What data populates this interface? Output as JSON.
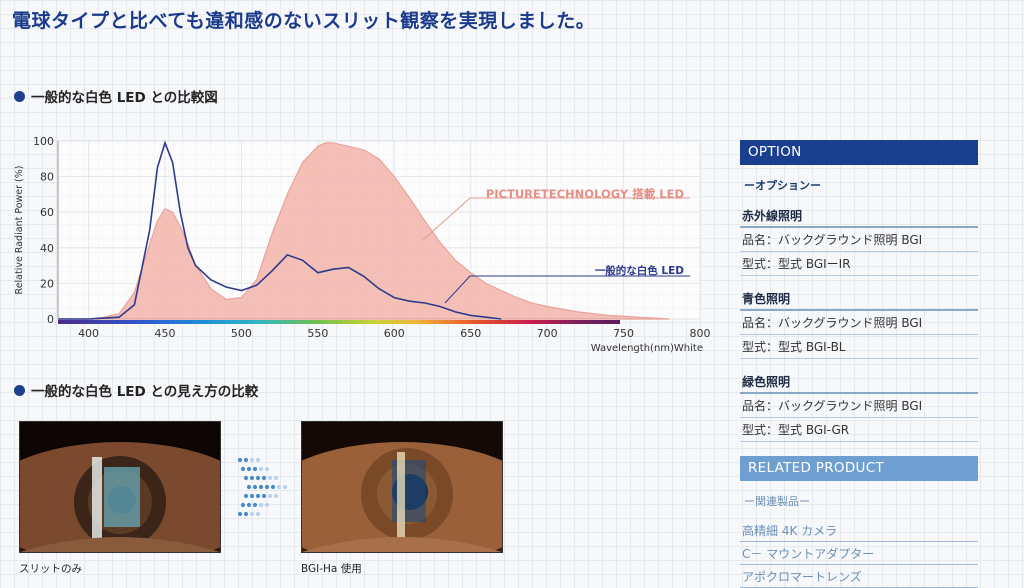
{
  "headline": "電球タイプと比べても違和感のないスリット観察を実現しました。",
  "section1_title": "一般的な白色 LED との比較図",
  "section2_title": "一般的な白色 LED との見え方の比較",
  "chart_data": {
    "type": "area",
    "ylabel": "Relative Radiant Power (%)",
    "xlabel": "Wavelength(nm)White",
    "xlim": [
      380,
      800
    ],
    "ylim": [
      0,
      100
    ],
    "xticks": [
      400,
      450,
      500,
      550,
      600,
      650,
      700,
      750,
      800
    ],
    "yticks": [
      0,
      20,
      40,
      60,
      80,
      100
    ],
    "series": [
      {
        "name": "PICTURETECHNOLOGY 搭載 LED",
        "color": "#f4b9b0",
        "edge": "#e79a90",
        "x": [
          380,
          400,
          410,
          420,
          430,
          440,
          445,
          450,
          455,
          460,
          465,
          470,
          480,
          490,
          500,
          510,
          520,
          530,
          540,
          550,
          555,
          560,
          570,
          580,
          590,
          600,
          610,
          620,
          630,
          640,
          650,
          660,
          670,
          680,
          690,
          700,
          720,
          740,
          760,
          780
        ],
        "y": [
          0,
          0,
          1,
          3,
          15,
          42,
          55,
          62,
          60,
          52,
          42,
          30,
          17,
          11,
          12,
          22,
          48,
          70,
          88,
          97,
          99,
          99,
          97,
          95,
          90,
          80,
          68,
          55,
          43,
          33,
          26,
          20,
          16,
          12,
          9,
          7,
          4,
          2,
          1,
          0
        ]
      },
      {
        "name": "一般的な白色 LED",
        "color": "#2e3a8c",
        "x": [
          380,
          400,
          420,
          430,
          440,
          445,
          450,
          455,
          460,
          465,
          470,
          480,
          490,
          500,
          510,
          520,
          530,
          540,
          550,
          560,
          570,
          580,
          590,
          600,
          610,
          620,
          630,
          640,
          650,
          660,
          670
        ],
        "y": [
          0,
          0,
          1,
          8,
          50,
          85,
          99,
          88,
          60,
          40,
          30,
          22,
          18,
          16,
          19,
          27,
          36,
          33,
          26,
          28,
          29,
          24,
          17,
          12,
          10,
          9,
          7,
          4,
          2,
          1,
          0
        ]
      }
    ],
    "annotations": [
      "PICTURETECHNOLOGY 搭載 LED",
      "一般的な白色 LED"
    ]
  },
  "captions": {
    "left": "スリットのみ",
    "right": "BGI-Ha 使用"
  },
  "option": {
    "header": "OPTION",
    "subtitle": "ーオプションー",
    "groups": [
      {
        "title": "赤外線照明",
        "name": "品名：バックグラウンド照明 BGI",
        "model": "型式：型式 BGIーIR"
      },
      {
        "title": "青色照明",
        "name": "品名：バックグラウンド照明 BGI",
        "model": "型式：型式 BGI-BL"
      },
      {
        "title": "緑色照明",
        "name": "品名：バックグラウンド照明 BGI",
        "model": "型式：型式 BGI-GR"
      }
    ]
  },
  "related": {
    "header": "RELATED PRODUCT",
    "subtitle": "ー関連製品ー",
    "items": [
      "高精細 4K カメラ",
      "C－ マウントアダプター",
      "アポクロマートレンズ"
    ]
  }
}
